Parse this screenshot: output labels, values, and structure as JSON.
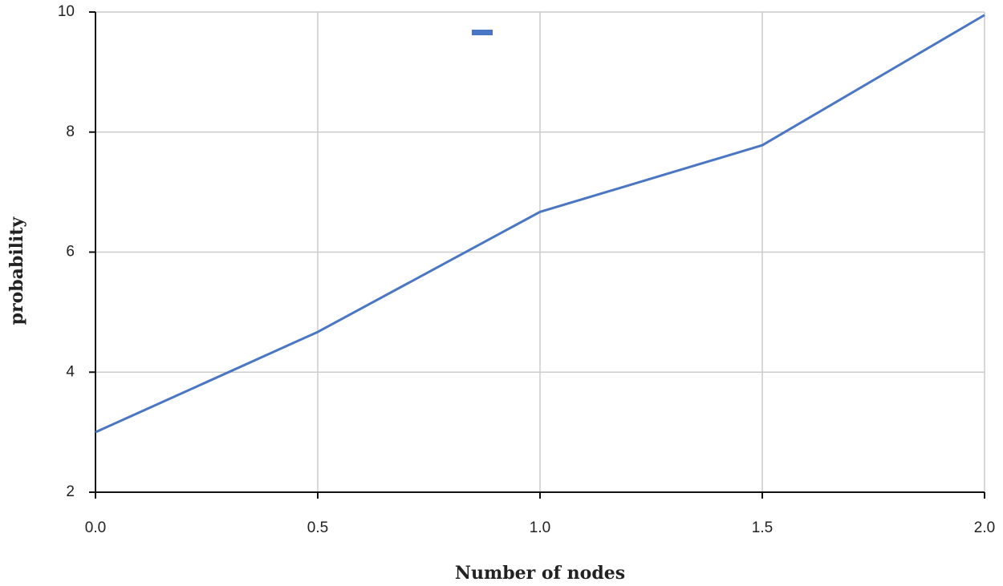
{
  "chart_data": {
    "type": "line",
    "x_label": "Number of nodes",
    "y_label": "probability",
    "x": [
      0,
      0.5,
      1,
      1.5,
      2
    ],
    "values": [
      3.0,
      4.67,
      6.67,
      7.78,
      9.95
    ],
    "color": "#4a76c4",
    "xlim": [
      0,
      2
    ],
    "xticks": [
      {
        "value": 0,
        "label": "0.0"
      },
      {
        "value": 0.5,
        "label": "0.5"
      },
      {
        "value": 1,
        "label": "1.0"
      },
      {
        "value": 1.5,
        "label": "1.5"
      },
      {
        "value": 2,
        "label": "2.0"
      }
    ],
    "ylim": [
      2,
      10
    ],
    "yticks": [
      2,
      4,
      6,
      8,
      10
    ],
    "grid": true
  }
}
